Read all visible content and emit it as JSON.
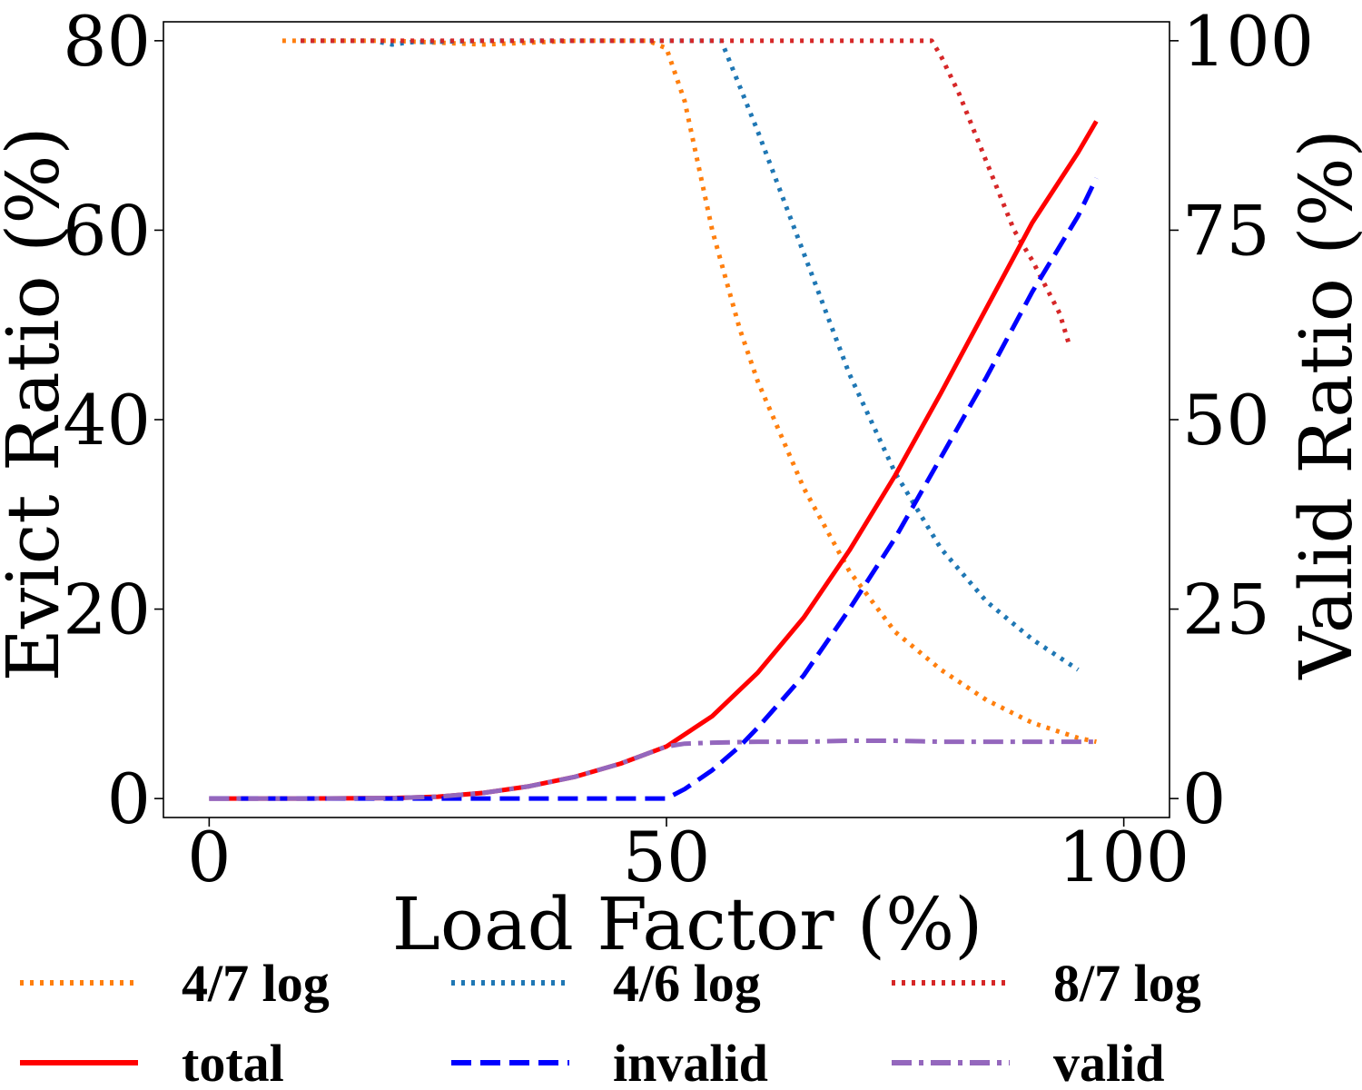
{
  "chart_data": {
    "type": "line",
    "xlabel": "Load Factor (%)",
    "ylabel_left": "Evict Ratio (%)",
    "ylabel_right": "Valid Ratio (%)",
    "xlim": [
      -5,
      105
    ],
    "ylim_left": [
      -2,
      82
    ],
    "ylim_right": [
      -2.5,
      102.5
    ],
    "xticks": [
      0,
      50,
      100
    ],
    "yticks_left": [
      0,
      20,
      40,
      60,
      80
    ],
    "yticks_right": [
      0,
      25,
      50,
      75,
      100
    ],
    "grid": false,
    "legend_position": "below-plot",
    "legend_columns": 3,
    "series": [
      {
        "name": "4/7 log",
        "axis": "right",
        "color": "#ff7f0e",
        "style": "dotted",
        "x": [
          8,
          15,
          20,
          30,
          40,
          48,
          50,
          52,
          55,
          58,
          60,
          65,
          70,
          75,
          80,
          85,
          90,
          95,
          97
        ],
        "y": [
          100,
          100,
          100,
          99.5,
          100,
          100,
          99,
          92,
          75,
          62,
          55,
          41,
          30,
          22,
          17,
          13,
          10,
          8,
          7.5
        ]
      },
      {
        "name": "4/6 log",
        "axis": "right",
        "color": "#1f77b4",
        "style": "dotted",
        "x": [
          10,
          18,
          20,
          22,
          30,
          40,
          50,
          56,
          58,
          60,
          65,
          70,
          75,
          80,
          85,
          90,
          95
        ],
        "y": [
          100,
          100,
          99.5,
          99.8,
          100,
          100,
          100,
          100,
          94,
          88,
          72,
          56,
          43,
          33,
          26,
          21,
          17
        ]
      },
      {
        "name": "8/7 log",
        "axis": "right",
        "color": "#d62728",
        "style": "dotted",
        "x": [
          10,
          20,
          30,
          40,
          50,
          60,
          70,
          78,
          79,
          80,
          82,
          85,
          88,
          90,
          93,
          94
        ],
        "y": [
          100,
          100,
          100,
          100,
          100,
          100,
          100,
          100,
          100,
          98,
          93,
          84,
          75,
          71,
          64,
          60
        ]
      },
      {
        "name": "total",
        "axis": "left",
        "color": "#ff0000",
        "style": "solid",
        "x": [
          0,
          10,
          20,
          25,
          30,
          35,
          40,
          45,
          50,
          55,
          60,
          65,
          70,
          75,
          80,
          85,
          90,
          95,
          97
        ],
        "y": [
          0,
          0,
          0.05,
          0.2,
          0.6,
          1.3,
          2.3,
          3.7,
          5.5,
          8.7,
          13.3,
          19.1,
          26.2,
          34.1,
          42.8,
          51.8,
          60.8,
          68.2,
          71.5
        ]
      },
      {
        "name": "invalid",
        "axis": "left",
        "color": "#0000ff",
        "style": "dashed",
        "x": [
          0,
          10,
          20,
          30,
          40,
          50,
          52,
          55,
          58,
          60,
          65,
          70,
          75,
          80,
          85,
          90,
          95,
          97
        ],
        "y": [
          0,
          0,
          0,
          0,
          0,
          0,
          1,
          3,
          5.5,
          7.5,
          13,
          20,
          27.5,
          36,
          44.5,
          53.5,
          61.5,
          65.5
        ]
      },
      {
        "name": "valid",
        "axis": "left",
        "color": "#9467bd",
        "style": "dashdot",
        "x": [
          0,
          10,
          20,
          25,
          30,
          35,
          40,
          45,
          50,
          52,
          55,
          60,
          65,
          70,
          75,
          80,
          85,
          90,
          95,
          97
        ],
        "y": [
          0,
          0,
          0.05,
          0.2,
          0.6,
          1.3,
          2.3,
          3.7,
          5.5,
          5.8,
          5.9,
          6.0,
          6.0,
          6.1,
          6.1,
          6.0,
          6.0,
          6.0,
          6.0,
          6.0
        ]
      }
    ]
  }
}
